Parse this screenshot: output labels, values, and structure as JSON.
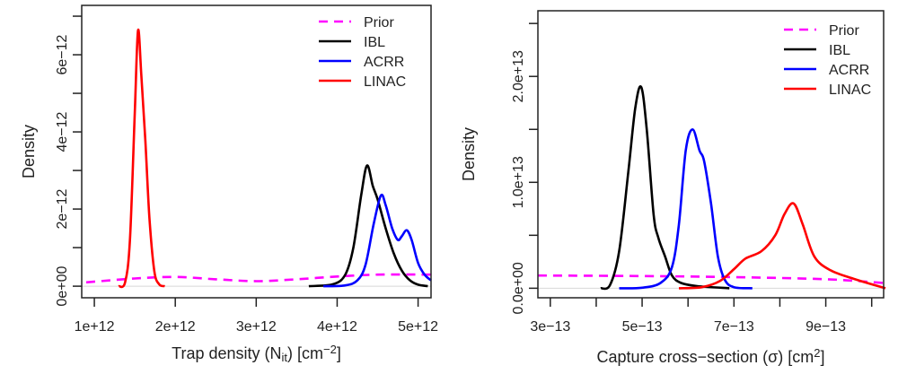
{
  "chart_data": [
    {
      "type": "line",
      "xlabel": "Trap density (N",
      "xlabel_sub": "it",
      "xlabel_tail": ") [cm",
      "xlabel_sup": "−2",
      "xlabel_end": "]",
      "ylabel": "Density",
      "xlim": [
        844000000000.0,
        5160000000000.0
      ],
      "ylim": [
        -3e-13,
        7.28e-12
      ],
      "xticks": [
        1000000000000.0,
        2000000000000.0,
        3000000000000.0,
        4000000000000.0,
        5000000000000.0
      ],
      "xtick_labels": [
        "1e+12",
        "2e+12",
        "3e+12",
        "4e+12",
        "5e+12"
      ],
      "yticks": [
        0,
        1e-12,
        2e-12,
        3e-12,
        4e-12,
        5e-12,
        6e-12,
        7e-12
      ],
      "ytick_labels": [
        "0e+00",
        "",
        "2e−12",
        "",
        "4e−12",
        "",
        "6e−12",
        ""
      ],
      "grid": false,
      "legend_placement": "top-right",
      "series": [
        {
          "name": "Prior",
          "color": "#ff00ff",
          "dash": true,
          "x": [
            900000000000.0,
            1500000000000.0,
            2000000000000.0,
            2500000000000.0,
            3000000000000.0,
            3500000000000.0,
            4000000000000.0,
            4500000000000.0,
            5160000000000.0
          ],
          "y": [
            1e-13,
            2e-13,
            2.4e-13,
            1.8e-13,
            1.3e-13,
            1.8e-13,
            2.5e-13,
            3e-13,
            3e-13
          ]
        },
        {
          "name": "IBL",
          "color": "#000000",
          "x": [
            3650000000000.0,
            3950000000000.0,
            4100000000000.0,
            4200000000000.0,
            4300000000000.0,
            4370000000000.0,
            4440000000000.0,
            4500000000000.0,
            4600000000000.0,
            4700000000000.0,
            4800000000000.0,
            4900000000000.0,
            5000000000000.0,
            5120000000000.0
          ],
          "y": [
            0,
            5e-14,
            3e-13,
            1e-12,
            2.4e-12,
            3.13e-12,
            2.6e-12,
            2.25e-12,
            1.5e-12,
            8.5e-13,
            4e-13,
            1.5e-13,
            4e-14,
            0
          ]
        },
        {
          "name": "ACRR",
          "color": "#0000ff",
          "x": [
            3830000000000.0,
            4100000000000.0,
            4250000000000.0,
            4350000000000.0,
            4450000000000.0,
            4540000000000.0,
            4600000000000.0,
            4680000000000.0,
            4750000000000.0,
            4800000000000.0,
            4860000000000.0,
            4920000000000.0,
            5000000000000.0,
            5080000000000.0,
            5160000000000.0
          ],
          "y": [
            0,
            2e-14,
            1.5e-13,
            5.5e-13,
            1.6e-12,
            2.35e-12,
            2.1e-12,
            1.5e-12,
            1.2e-12,
            1.3e-12,
            1.45e-12,
            1.2e-12,
            6e-13,
            3e-13,
            1.5e-13
          ]
        },
        {
          "name": "LINAC",
          "color": "#ff0000",
          "x": [
            1300000000000.0,
            1380000000000.0,
            1440000000000.0,
            1500000000000.0,
            1540000000000.0,
            1580000000000.0,
            1630000000000.0,
            1680000000000.0,
            1740000000000.0,
            1800000000000.0,
            1870000000000.0
          ],
          "y": [
            0,
            1e-13,
            1.2e-12,
            4.5e-12,
            6.63e-12,
            5.5e-12,
            3.8e-12,
            1.8e-12,
            4e-13,
            5e-14,
            0
          ]
        }
      ]
    },
    {
      "type": "line",
      "xlabel": "Capture cross−section (σ) [cm",
      "xlabel_sup": "2",
      "xlabel_end": "]",
      "ylabel": "Density",
      "xlim": [
        2.73e-13,
        1.026e-12
      ],
      "ylim": [
        -900000000000.0,
        26200000000000.0
      ],
      "xticks": [
        3e-13,
        4e-13,
        5e-13,
        6e-13,
        7e-13,
        8e-13,
        9e-13,
        1e-12
      ],
      "xtick_labels": [
        "3e−13",
        "",
        "5e−13",
        "",
        "7e−13",
        "",
        "9e−13",
        ""
      ],
      "yticks": [
        0,
        5000000000000.0,
        10000000000000.0,
        15000000000000.0,
        20000000000000.0,
        25000000000000.0
      ],
      "ytick_labels": [
        "0.0e+00",
        "",
        "1.0e+13",
        "",
        "2.0e+13",
        ""
      ],
      "grid": false,
      "legend_placement": "top-right",
      "series": [
        {
          "name": "Prior",
          "color": "#ff00ff",
          "dash": true,
          "x": [
            2.73e-13,
            5e-13,
            7e-13,
            9e-13,
            1.026e-12
          ],
          "y": [
            1200000000000.0,
            1150000000000.0,
            1050000000000.0,
            850000000000.0,
            500000000000.0
          ]
        },
        {
          "name": "IBL",
          "color": "#000000",
          "x": [
            4.1e-13,
            4.3e-13,
            4.5e-13,
            4.7e-13,
            4.85e-13,
            4.98e-13,
            5.1e-13,
            5.25e-13,
            5.35e-13,
            5.5e-13,
            5.65e-13,
            5.85e-13,
            6.2e-13,
            6.9e-13
          ],
          "y": [
            0,
            300000000000.0,
            3500000000000.0,
            11000000000000.0,
            17000000000000.0,
            19000000000000.0,
            15000000000000.0,
            7000000000000.0,
            4800000000000.0,
            3000000000000.0,
            1200000000000.0,
            500000000000.0,
            200000000000.0,
            0
          ]
        },
        {
          "name": "ACRR",
          "color": "#0000ff",
          "x": [
            4.5e-13,
            5e-13,
            5.4e-13,
            5.65e-13,
            5.8e-13,
            5.95e-13,
            6.1e-13,
            6.25e-13,
            6.35e-13,
            6.5e-13,
            6.65e-13,
            6.8e-13,
            7e-13,
            7.4e-13
          ],
          "y": [
            0,
            50000000000.0,
            500000000000.0,
            2000000000000.0,
            6000000000000.0,
            13000000000000.0,
            15000000000000.0,
            13000000000000.0,
            12000000000000.0,
            8000000000000.0,
            3000000000000.0,
            800000000000.0,
            100000000000.0,
            0
          ]
        },
        {
          "name": "LINAC",
          "color": "#ff0000",
          "x": [
            5.8e-13,
            6.3e-13,
            6.7e-13,
            7e-13,
            7.25e-13,
            7.6e-13,
            7.9e-13,
            8.1e-13,
            8.3e-13,
            8.5e-13,
            8.75e-13,
            9.1e-13,
            9.6e-13,
            1.03e-12
          ],
          "y": [
            0,
            100000000000.0,
            700000000000.0,
            1800000000000.0,
            2800000000000.0,
            3500000000000.0,
            5000000000000.0,
            7000000000000.0,
            8000000000000.0,
            6000000000000.0,
            3000000000000.0,
            1700000000000.0,
            900000000000.0,
            0
          ]
        }
      ]
    }
  ]
}
